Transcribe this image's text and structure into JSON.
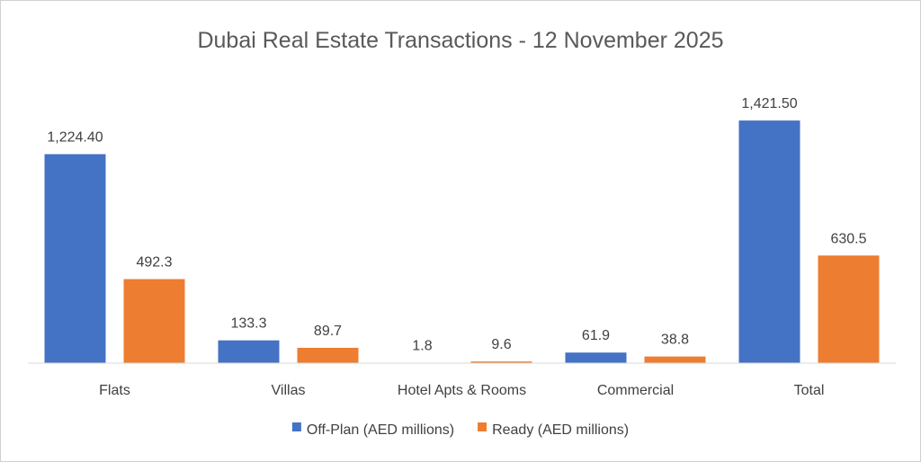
{
  "chart_data": {
    "type": "bar",
    "title": "Dubai Real Estate Transactions - 12 November 2025",
    "categories": [
      "Flats",
      "Villas",
      "Hotel Apts & Rooms",
      "Commercial",
      "Total"
    ],
    "series": [
      {
        "name": "Off-Plan (AED millions)",
        "color": "#4472C4",
        "values": [
          1224.4,
          133.3,
          1.8,
          61.9,
          1421.5
        ],
        "labels": [
          "1,224.40",
          "133.3",
          "1.8",
          "61.9",
          "1,421.50"
        ]
      },
      {
        "name": "Ready (AED millions)",
        "color": "#ED7D31",
        "values": [
          492.3,
          89.7,
          9.6,
          38.8,
          630.5
        ],
        "labels": [
          "492.3",
          "89.7",
          "9.6",
          "38.8",
          "630.5"
        ]
      }
    ],
    "ylim": [
      0,
      1580
    ],
    "grid": false,
    "legend_position": "bottom",
    "xlabel": "",
    "ylabel": ""
  }
}
